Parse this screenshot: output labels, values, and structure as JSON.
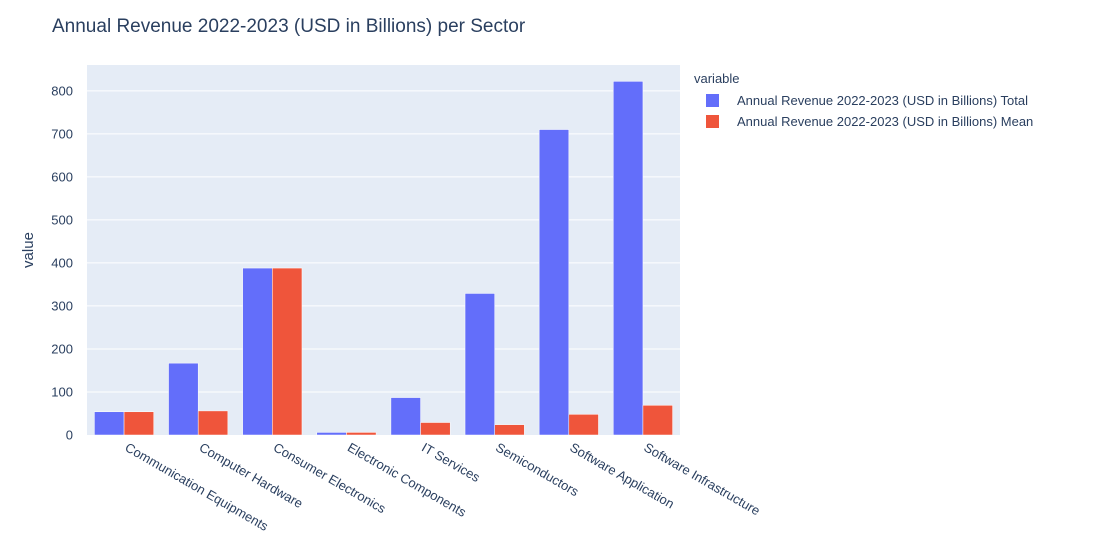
{
  "chart_data": {
    "type": "bar",
    "title": "Annual Revenue 2022-2023 (USD in Billions) per Sector",
    "xlabel": "",
    "ylabel": "value",
    "ylim": [
      0,
      860
    ],
    "yticks": [
      0,
      100,
      200,
      300,
      400,
      500,
      600,
      700,
      800
    ],
    "grid": true,
    "legend_title": "variable",
    "legend_position": "top-right",
    "categories": [
      "Communication Equipments",
      "Computer Hardware",
      "Consumer Electronics",
      "Electronic Components",
      "IT Services",
      "Semiconductors",
      "Software Application",
      "Software Infrastructure"
    ],
    "series": [
      {
        "name": "Annual Revenue 2022-2023 (USD in Billions) Total",
        "color": "#636efa",
        "values": [
          54,
          167,
          388,
          6,
          87,
          329,
          710,
          822
        ]
      },
      {
        "name": "Annual Revenue 2022-2023 (USD in Billions) Mean",
        "color": "#ef553b",
        "values": [
          54,
          56,
          388,
          6,
          29,
          24,
          48,
          69
        ]
      }
    ],
    "plot_background": "#e5ecf6"
  }
}
